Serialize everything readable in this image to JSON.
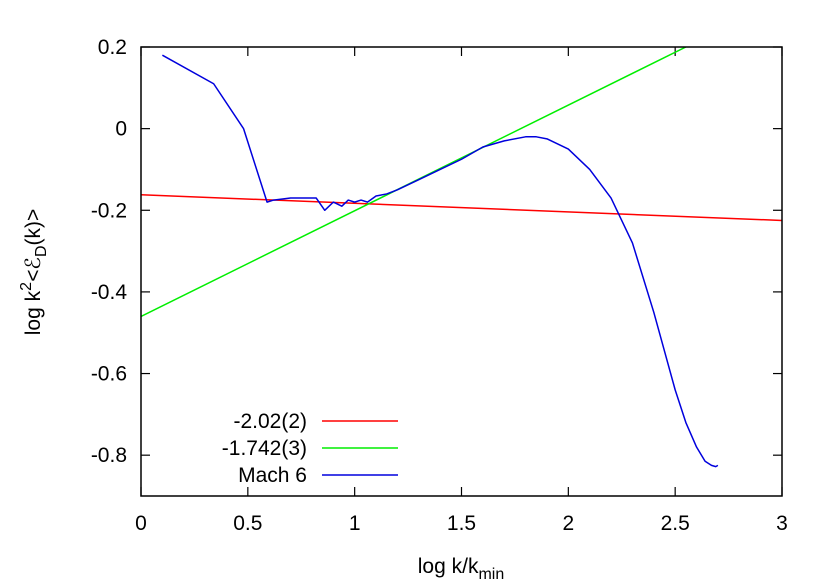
{
  "chart_data": {
    "type": "line",
    "title": "",
    "xlabel": "log k/k",
    "xlabel_sub": "min",
    "ylabel_pre": "log k",
    "ylabel_sup": "2",
    "ylabel_mid": "<ℰ",
    "ylabel_sub": "D",
    "ylabel_post": "(k)>",
    "xlim": [
      0,
      3
    ],
    "ylim": [
      -0.9,
      0.2
    ],
    "xticks": [
      0,
      0.5,
      1,
      1.5,
      2,
      2.5,
      3
    ],
    "xtick_labels": [
      "0",
      "0.5",
      "1",
      "1.5",
      "2",
      "2.5",
      "3"
    ],
    "yticks": [
      0.2,
      0,
      -0.2,
      -0.4,
      -0.6,
      -0.8
    ],
    "ytick_labels": [
      "0.2",
      "0",
      "-0.2",
      "-0.4",
      "-0.6",
      "-0.8"
    ],
    "grid": false,
    "legend_position": "bottom-left",
    "series": [
      {
        "name": "-2.02(2)",
        "color": "#ff0000",
        "x": [
          0,
          3
        ],
        "y": [
          -0.162,
          -0.225
        ]
      },
      {
        "name": "-1.742(3)",
        "color": "#00ee00",
        "x": [
          0,
          2.55
        ],
        "y": [
          -0.46,
          0.2
        ]
      },
      {
        "name": "Mach 6",
        "color": "#0000dd",
        "x": [
          0.1,
          0.34,
          0.48,
          0.59,
          0.62,
          0.7,
          0.78,
          0.82,
          0.86,
          0.9,
          0.94,
          0.97,
          1.0,
          1.03,
          1.06,
          1.1,
          1.15,
          1.2,
          1.3,
          1.4,
          1.5,
          1.6,
          1.7,
          1.8,
          1.85,
          1.9,
          2.0,
          2.1,
          2.2,
          2.3,
          2.4,
          2.5,
          2.55,
          2.6,
          2.64,
          2.67,
          2.69,
          2.7
        ],
        "y": [
          0.18,
          0.11,
          0.0,
          -0.18,
          -0.175,
          -0.17,
          -0.17,
          -0.17,
          -0.2,
          -0.18,
          -0.19,
          -0.175,
          -0.18,
          -0.175,
          -0.18,
          -0.165,
          -0.16,
          -0.15,
          -0.125,
          -0.1,
          -0.075,
          -0.045,
          -0.03,
          -0.02,
          -0.02,
          -0.025,
          -0.05,
          -0.1,
          -0.17,
          -0.28,
          -0.45,
          -0.64,
          -0.72,
          -0.78,
          -0.815,
          -0.825,
          -0.828,
          -0.825
        ]
      }
    ]
  }
}
